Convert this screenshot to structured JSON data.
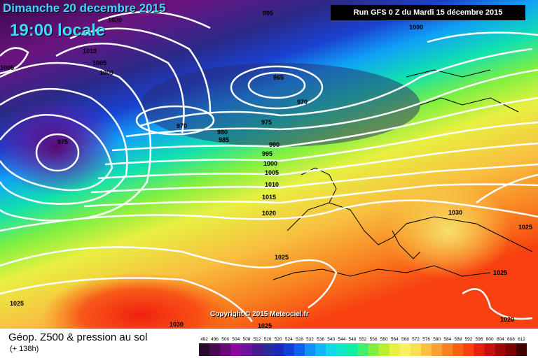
{
  "header": {
    "date": "Dimanche 20 decembre 2015",
    "time": "19:00 locale",
    "run": "Run GFS 0 Z du Mardi 15 décembre 2015"
  },
  "footer": {
    "title": "Géop. Z500 & pression au sol",
    "subtitle": "(+ 138h)",
    "copyright": "Copyright © 2015 Meteociel.fr"
  },
  "legend": {
    "values": [
      "492",
      "496",
      "500",
      "504",
      "508",
      "512",
      "516",
      "520",
      "524",
      "528",
      "532",
      "536",
      "540",
      "544",
      "548",
      "552",
      "556",
      "560",
      "564",
      "568",
      "572",
      "576",
      "580",
      "584",
      "588",
      "592",
      "596",
      "600",
      "604",
      "608",
      "612"
    ],
    "colors": [
      "#2a0a2a",
      "#4a0850",
      "#6a0878",
      "#8a08a0",
      "#7010a0",
      "#4a1890",
      "#2a2a9a",
      "#1a2ab8",
      "#1040d8",
      "#1060f0",
      "#1090f8",
      "#10b8f8",
      "#10d8e8",
      "#10e8c8",
      "#10f0a0",
      "#40f070",
      "#80f040",
      "#b8f030",
      "#e8f040",
      "#f8f060",
      "#f8e050",
      "#f8c040",
      "#f8a030",
      "#f88020",
      "#f86010",
      "#f84010",
      "#e82010",
      "#c81010",
      "#a00808",
      "#780404",
      "#400000"
    ]
  },
  "isobars": [
    "1020",
    "995",
    "1000",
    "1005",
    "1010",
    "1005",
    "1000",
    "965",
    "970",
    "970",
    "975",
    "980",
    "985",
    "990",
    "995",
    "1000",
    "1005",
    "1010",
    "1015",
    "1020",
    "975",
    "1030",
    "1025",
    "1025",
    "1025",
    "1030",
    "1025",
    "1020",
    "1005"
  ]
}
